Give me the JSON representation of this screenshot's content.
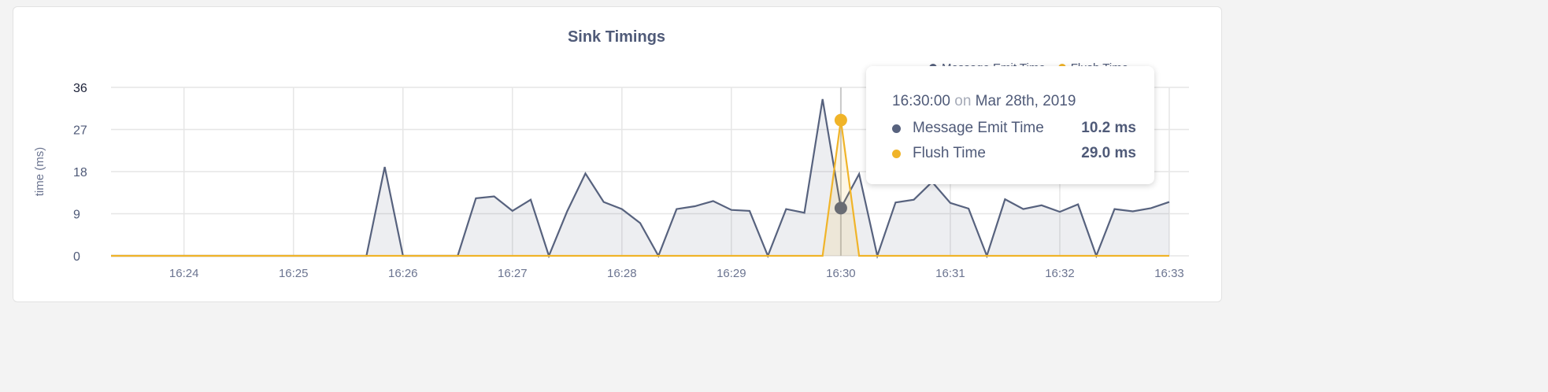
{
  "chart_data": {
    "type": "area",
    "title": "Sink Timings",
    "ylabel": "time (ms)",
    "xlabel": "",
    "ylim": [
      0,
      36
    ],
    "y_ticks": [
      "0",
      "9",
      "18",
      "27",
      "36"
    ],
    "x_ticks": [
      "16:24",
      "16:25",
      "16:26",
      "16:27",
      "16:28",
      "16:29",
      "16:30",
      "16:31",
      "16:32",
      "16:33"
    ],
    "x_start": "16:23:20",
    "x_end": "16:33:00",
    "x_interval_seconds": 10,
    "grid": true,
    "legend_position": "top-right",
    "series": [
      {
        "name": "Message Emit Time",
        "color": "#57627e",
        "values": [
          0,
          0,
          0,
          0,
          0,
          0,
          0,
          0,
          0,
          0,
          0,
          0,
          0,
          0,
          0,
          19,
          0,
          0,
          0,
          0,
          12.3,
          12.7,
          9.6,
          12,
          0,
          9.5,
          17.6,
          11.5,
          10,
          7,
          0,
          10,
          10.6,
          11.7,
          9.8,
          9.6,
          0,
          10,
          9.2,
          33.5,
          10.2,
          17.5,
          0,
          11.4,
          12,
          15.8,
          11.3,
          10.1,
          0,
          12.1,
          10,
          10.8,
          9.4,
          11,
          0,
          10,
          9.5,
          10.2,
          11.5
        ]
      },
      {
        "name": "Flush Time",
        "color": "#f0b429",
        "values": [
          0,
          0,
          0,
          0,
          0,
          0,
          0,
          0,
          0,
          0,
          0,
          0,
          0,
          0,
          0,
          0,
          0,
          0,
          0,
          0,
          0,
          0,
          0,
          0,
          0,
          0,
          0,
          0,
          0,
          0,
          0,
          0,
          0,
          0,
          0,
          0,
          0,
          0,
          0,
          0,
          29.0,
          0,
          0,
          0,
          0,
          0,
          0,
          0,
          0,
          0,
          0,
          0,
          0,
          0,
          0,
          0,
          0,
          0,
          0
        ]
      }
    ]
  },
  "tooltip": {
    "time": "16:30:00",
    "on": "on",
    "date": "Mar 28th, 2019",
    "rows": [
      {
        "label": "Message Emit Time",
        "value": "10.2 ms"
      },
      {
        "label": "Flush Time",
        "value": "29.0 ms"
      }
    ]
  }
}
